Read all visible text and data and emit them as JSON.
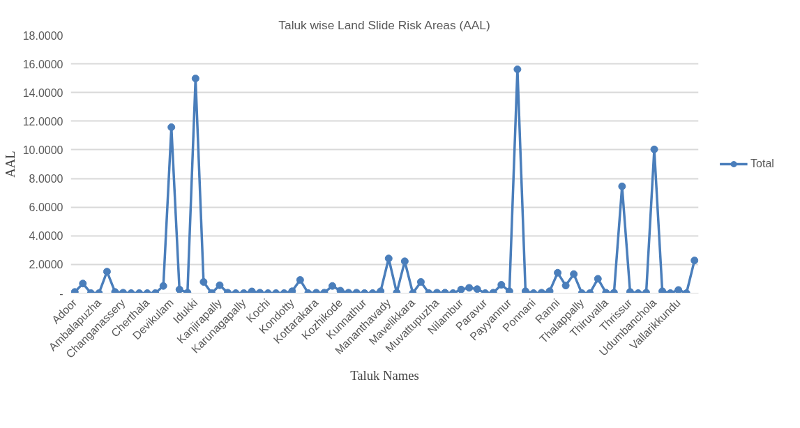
{
  "chart_data": {
    "type": "line",
    "title": "Taluk wise Land Slide Risk Areas (AAL)",
    "xlabel": "Taluk Names",
    "ylabel": "AAL",
    "categories": [
      "Adoor",
      null,
      null,
      "Ambalapuzha",
      null,
      null,
      "Changanassery",
      null,
      null,
      "Cherthala",
      null,
      null,
      "Devikulam",
      null,
      null,
      "Idukki",
      null,
      null,
      "Kanjirapally",
      null,
      null,
      "Karunagapally",
      null,
      null,
      "Kochi",
      null,
      null,
      "Kondotty",
      null,
      null,
      "Kottarakara",
      null,
      null,
      "Kozhikode",
      null,
      null,
      "Kunnathur",
      null,
      null,
      "Mananthavady",
      null,
      null,
      "Mavelikkara",
      null,
      null,
      "Muvattupuzha",
      null,
      null,
      "Nilambur",
      null,
      null,
      "Paravur",
      null,
      null,
      "Payyannur",
      null,
      null,
      "Ponnani",
      null,
      null,
      "Ranni",
      null,
      null,
      "Thalappally",
      null,
      null,
      "Thiruvalla",
      null,
      null,
      "Thrissur",
      null,
      null,
      "Udumbanchola",
      null,
      null,
      "Vallarikkundu",
      null,
      null
    ],
    "series": [
      {
        "name": "Total",
        "color": "#4a7ebb",
        "values": [
          0.08,
          0.67,
          0,
          0,
          1.5,
          0.08,
          0.03,
          0,
          0,
          0,
          0,
          0.5,
          11.58,
          0.25,
          0.03,
          14.98,
          0.78,
          0,
          0.55,
          0.03,
          0,
          0,
          0.12,
          0.03,
          0,
          0,
          0,
          0.13,
          0.92,
          0,
          0.03,
          0.03,
          0.5,
          0.17,
          0.03,
          0.03,
          0,
          0,
          0.13,
          2.42,
          0.03,
          2.22,
          0,
          0.78,
          0,
          0.03,
          0.03,
          0,
          0.25,
          0.37,
          0.28,
          0,
          0.03,
          0.58,
          0.13,
          15.62,
          0.13,
          0,
          0.03,
          0.13,
          1.42,
          0.53,
          1.33,
          0,
          0,
          1.0,
          0.03,
          0.03,
          7.45,
          0.08,
          0,
          0.03,
          10.03,
          0.13,
          0,
          0.22,
          0,
          2.28
        ]
      }
    ],
    "ylim": [
      0,
      18
    ],
    "yticks": [
      {
        "value": 0,
        "label": "-"
      },
      {
        "value": 2,
        "label": "2.0000"
      },
      {
        "value": 4,
        "label": "4.0000"
      },
      {
        "value": 6,
        "label": "6.0000"
      },
      {
        "value": 8,
        "label": "8.0000"
      },
      {
        "value": 10,
        "label": "10.0000"
      },
      {
        "value": 12,
        "label": "12.0000"
      },
      {
        "value": 14,
        "label": "14.0000"
      },
      {
        "value": 16,
        "label": "16.0000"
      },
      {
        "value": 18,
        "label": "18.0000"
      }
    ],
    "grid": "y",
    "legend": "right",
    "marker": "circle",
    "line_style": "solid"
  }
}
